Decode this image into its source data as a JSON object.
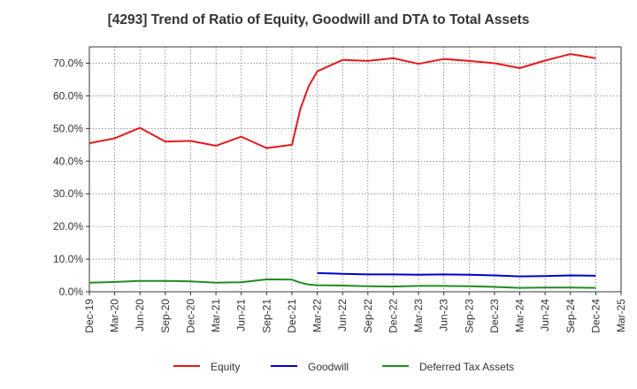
{
  "chart_data": {
    "type": "line",
    "title": "[4293]  Trend of Ratio of Equity, Goodwill and DTA to Total Assets",
    "xlabel": "",
    "ylabel": "",
    "ylim": [
      0,
      75
    ],
    "y_ticks": [
      0,
      10,
      20,
      30,
      40,
      50,
      60,
      70
    ],
    "y_tick_labels": [
      "0.0%",
      "10.0%",
      "20.0%",
      "30.0%",
      "40.0%",
      "50.0%",
      "60.0%",
      "70.0%"
    ],
    "x_ticks": [
      "Dec-19",
      "Mar-20",
      "Jun-20",
      "Sep-20",
      "Dec-20",
      "Mar-21",
      "Jun-21",
      "Sep-21",
      "Dec-21",
      "Mar-22",
      "Jun-22",
      "Sep-22",
      "Dec-22",
      "Mar-23",
      "Jun-23",
      "Sep-23",
      "Dec-23",
      "Mar-24",
      "Jun-24",
      "Sep-24",
      "Dec-24",
      "Mar-25"
    ],
    "grid": true,
    "legend_position": "bottom",
    "series": [
      {
        "name": "Equity",
        "color": "#e31a1c",
        "points": [
          [
            "Dec-19",
            45.5
          ],
          [
            "Mar-20",
            47.0
          ],
          [
            "Jun-20",
            50.2
          ],
          [
            "Sep-20",
            46.0
          ],
          [
            "Dec-20",
            46.2
          ],
          [
            "Mar-21",
            44.7
          ],
          [
            "Jun-21",
            47.5
          ],
          [
            "Sep-21",
            44.0
          ],
          [
            "Dec-21",
            45.0
          ],
          [
            "Jan-22",
            56.0
          ],
          [
            "Feb-22",
            63.0
          ],
          [
            "Mar-22",
            67.5
          ],
          [
            "Jun-22",
            71.0
          ],
          [
            "Sep-22",
            70.7
          ],
          [
            "Dec-22",
            71.5
          ],
          [
            "Mar-23",
            69.8
          ],
          [
            "Jun-23",
            71.3
          ],
          [
            "Sep-23",
            70.7
          ],
          [
            "Dec-23",
            70.0
          ],
          [
            "Mar-24",
            68.5
          ],
          [
            "Jun-24",
            70.8
          ],
          [
            "Sep-24",
            72.8
          ],
          [
            "Dec-24",
            71.5
          ]
        ]
      },
      {
        "name": "Goodwill",
        "color": "#0000cc",
        "points": [
          [
            "Mar-22",
            5.7
          ],
          [
            "Jun-22",
            5.5
          ],
          [
            "Sep-22",
            5.3
          ],
          [
            "Dec-22",
            5.3
          ],
          [
            "Mar-23",
            5.2
          ],
          [
            "Jun-23",
            5.3
          ],
          [
            "Sep-23",
            5.2
          ],
          [
            "Dec-23",
            5.0
          ],
          [
            "Mar-24",
            4.7
          ],
          [
            "Jun-24",
            4.8
          ],
          [
            "Sep-24",
            5.0
          ],
          [
            "Dec-24",
            4.9
          ]
        ]
      },
      {
        "name": "Deferred Tax Assets",
        "color": "#228b22",
        "points": [
          [
            "Dec-19",
            2.8
          ],
          [
            "Mar-20",
            3.0
          ],
          [
            "Jun-20",
            3.3
          ],
          [
            "Sep-20",
            3.3
          ],
          [
            "Dec-20",
            3.2
          ],
          [
            "Mar-21",
            2.8
          ],
          [
            "Jun-21",
            2.9
          ],
          [
            "Sep-21",
            3.8
          ],
          [
            "Dec-21",
            3.7
          ],
          [
            "Jan-22",
            2.8
          ],
          [
            "Feb-22",
            2.2
          ],
          [
            "Mar-22",
            2.0
          ],
          [
            "Jun-22",
            1.9
          ],
          [
            "Sep-22",
            1.7
          ],
          [
            "Dec-22",
            1.6
          ],
          [
            "Mar-23",
            1.8
          ],
          [
            "Jun-23",
            1.8
          ],
          [
            "Sep-23",
            1.7
          ],
          [
            "Dec-23",
            1.5
          ],
          [
            "Mar-24",
            1.2
          ],
          [
            "Jun-24",
            1.3
          ],
          [
            "Sep-24",
            1.3
          ],
          [
            "Dec-24",
            1.2
          ]
        ]
      }
    ]
  }
}
